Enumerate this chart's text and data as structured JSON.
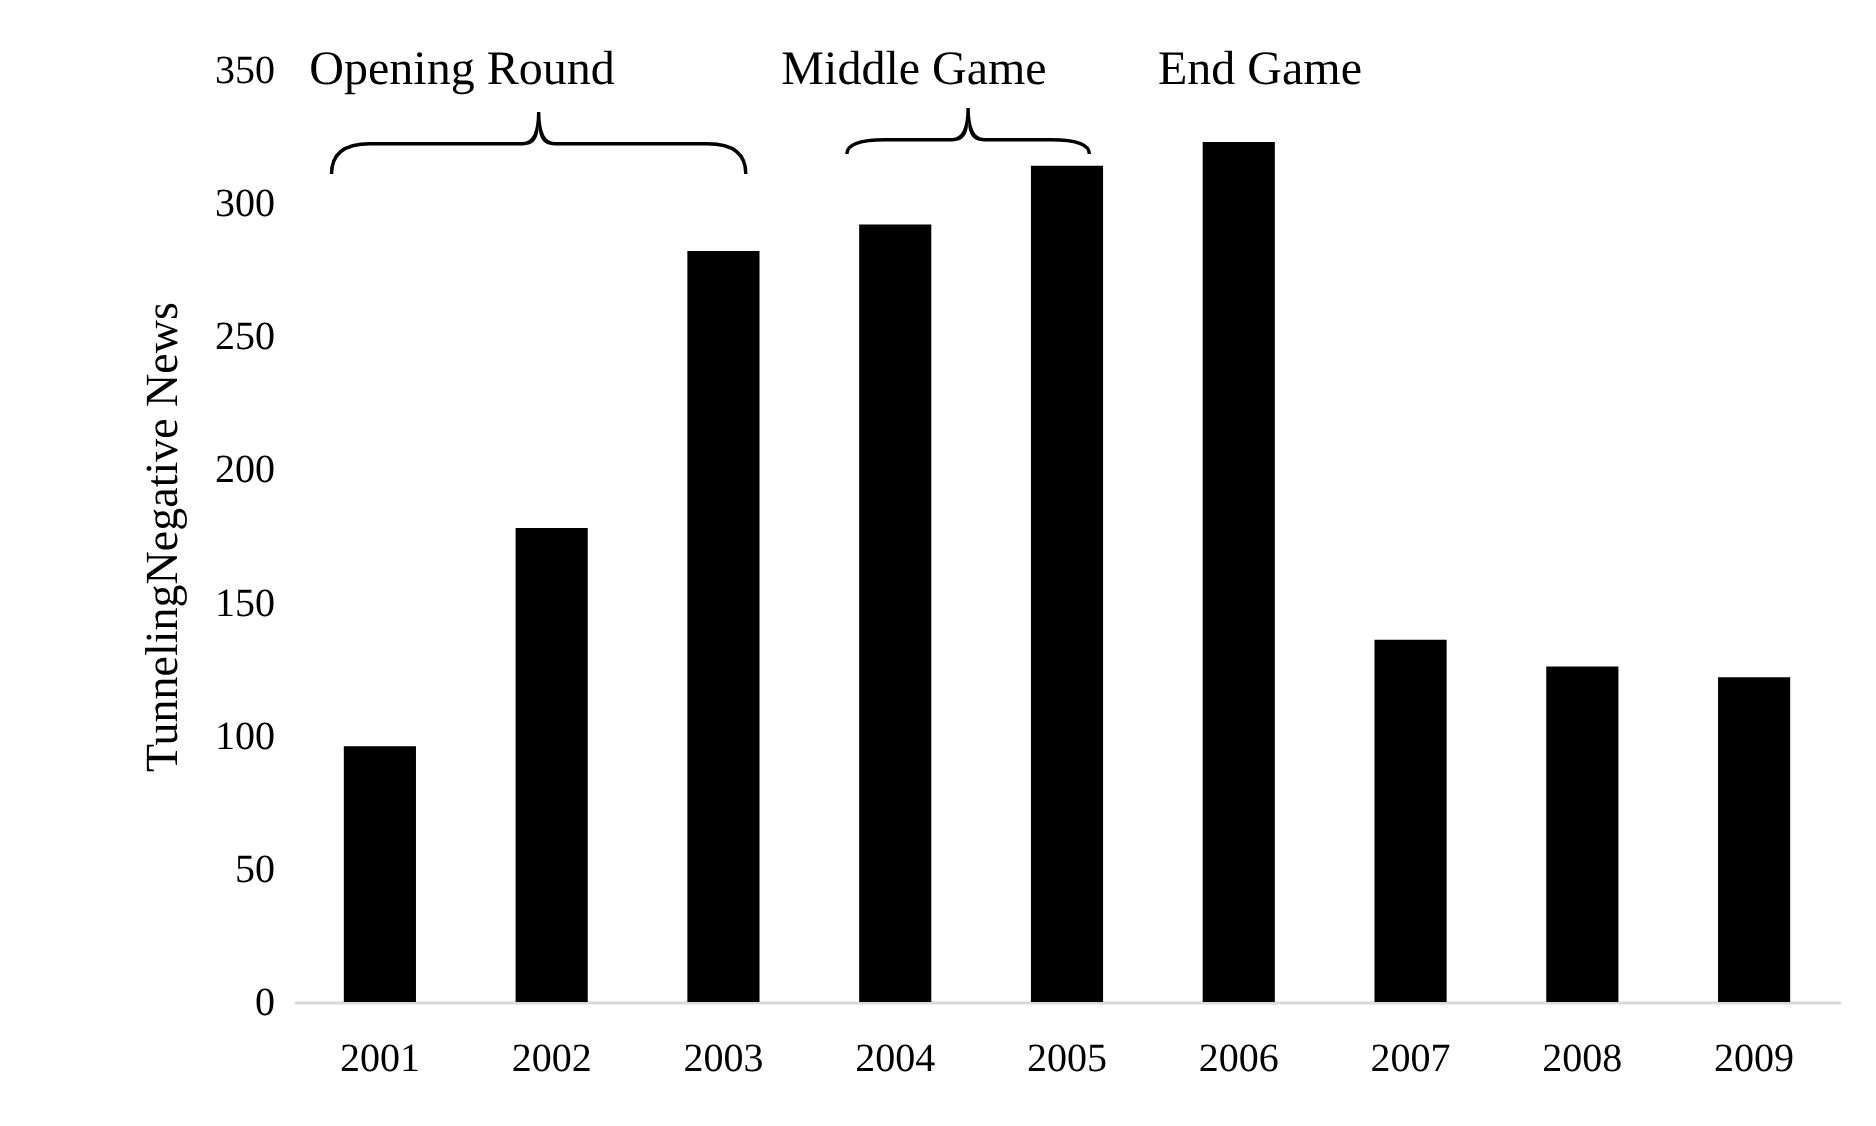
{
  "chart_data": {
    "type": "bar",
    "ylabel": "TunnelingNegative News",
    "categories": [
      "2001",
      "2002",
      "2003",
      "2004",
      "2005",
      "2006",
      "2007",
      "2008",
      "2009"
    ],
    "values": [
      96,
      178,
      282,
      292,
      314,
      323,
      136,
      126,
      122
    ],
    "color": "#000000",
    "ylim": [
      0,
      350
    ],
    "yticks": [
      0,
      50,
      100,
      150,
      200,
      250,
      300,
      350
    ],
    "grid": false,
    "annotations": [
      "Opening Round",
      "Middle Game",
      "End Game"
    ]
  }
}
